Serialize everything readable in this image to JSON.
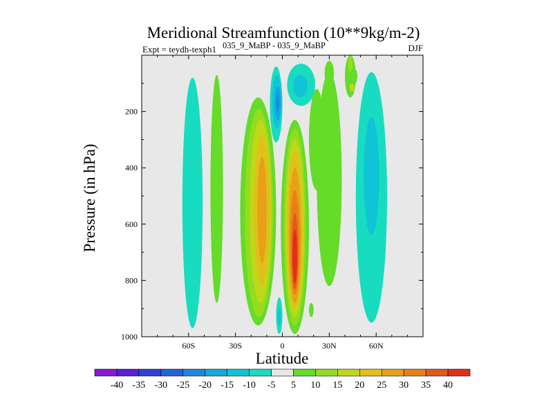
{
  "chart_data": {
    "type": "heatmap",
    "title": "Meridional Streamfunction (10**9kg/m-2)",
    "subtitle_left": "Expt = teydh-texph1",
    "subtitle_exp_a": "035_9_MaBP",
    "subtitle_sep": " - ",
    "subtitle_exp_b": "035_9_MaBP",
    "season": "DJF",
    "xlabel": "Latitude",
    "ylabel": "Pressure (in hPa)",
    "xlim": [
      -90,
      90
    ],
    "ylim": [
      1000,
      0
    ],
    "x_ticks": [
      {
        "value": -60,
        "label": "60S"
      },
      {
        "value": -30,
        "label": "30S"
      },
      {
        "value": 0,
        "label": "0"
      },
      {
        "value": 30,
        "label": "30N"
      },
      {
        "value": 60,
        "label": "60N"
      }
    ],
    "y_ticks": [
      {
        "value": 200,
        "label": "200"
      },
      {
        "value": 400,
        "label": "400"
      },
      {
        "value": 600,
        "label": "600"
      },
      {
        "value": 800,
        "label": "800"
      },
      {
        "value": 1000,
        "label": "1000"
      }
    ],
    "background_color": "#e8e8e8",
    "colorbar": {
      "levels": [
        -40,
        -35,
        -30,
        -25,
        -20,
        -15,
        -10,
        -5,
        5,
        10,
        15,
        20,
        25,
        30,
        35,
        40
      ],
      "labels": [
        "-40",
        "-35",
        "-30",
        "-25",
        "-20",
        "-15",
        "-10",
        "-5",
        "5",
        "10",
        "15",
        "20",
        "25",
        "30",
        "35",
        "40"
      ],
      "colors": [
        "#8a18d8",
        "#5a1fd8",
        "#2f3fd8",
        "#1d66d8",
        "#1a8ae0",
        "#12a8e0",
        "#10c4d8",
        "#18dcc0",
        "#e6e6e6",
        "#64dc28",
        "#94dc20",
        "#c0d818",
        "#e0c01a",
        "#e8a018",
        "#e88018",
        "#e05a18",
        "#e03018"
      ]
    },
    "contour_regions": [
      {
        "name": "sh-subtropical-cell",
        "color_index": 9,
        "lat_min": -27,
        "lat_max": -4,
        "p_top": 150,
        "p_bottom": 960
      },
      {
        "name": "sh-subtropical-cell",
        "color_index": 10,
        "lat_min": -24,
        "lat_max": -6,
        "p_top": 190,
        "p_bottom": 930
      },
      {
        "name": "sh-subtropical-cell",
        "color_index": 11,
        "lat_min": -21,
        "lat_max": -7,
        "p_top": 230,
        "p_bottom": 880
      },
      {
        "name": "sh-subtropical-cell",
        "color_index": 12,
        "lat_min": -18,
        "lat_max": -8,
        "p_top": 280,
        "p_bottom": 820
      },
      {
        "name": "sh-subtropical-cell",
        "color_index": 13,
        "lat_min": -16,
        "lat_max": -10,
        "p_top": 360,
        "p_bottom": 740
      },
      {
        "name": "nh-hadley-cell",
        "color_index": 9,
        "lat_min": -1,
        "lat_max": 17,
        "p_top": 230,
        "p_bottom": 990
      },
      {
        "name": "nh-hadley-cell",
        "color_index": 10,
        "lat_min": 1,
        "lat_max": 15,
        "p_top": 260,
        "p_bottom": 960
      },
      {
        "name": "nh-hadley-cell",
        "color_index": 11,
        "lat_min": 2,
        "lat_max": 14,
        "p_top": 300,
        "p_bottom": 930
      },
      {
        "name": "nh-hadley-cell",
        "color_index": 12,
        "lat_min": 3,
        "lat_max": 13,
        "p_top": 340,
        "p_bottom": 900
      },
      {
        "name": "nh-hadley-cell",
        "color_index": 13,
        "lat_min": 4,
        "lat_max": 12,
        "p_top": 400,
        "p_bottom": 880
      },
      {
        "name": "nh-hadley-cell",
        "color_index": 14,
        "lat_min": 5,
        "lat_max": 11,
        "p_top": 480,
        "p_bottom": 850
      },
      {
        "name": "nh-hadley-cell",
        "color_index": 15,
        "lat_min": 6,
        "lat_max": 10,
        "p_top": 560,
        "p_bottom": 830
      },
      {
        "name": "nh-hadley-cell",
        "color_index": 16,
        "lat_min": 6.5,
        "lat_max": 9.5,
        "p_top": 620,
        "p_bottom": 810
      },
      {
        "name": "sh-southern-band",
        "color_index": 7,
        "lat_min": -64,
        "lat_max": -51,
        "p_top": 80,
        "p_bottom": 970
      },
      {
        "name": "sh-southern-band",
        "color_index": 9,
        "lat_min": -46,
        "lat_max": -38,
        "p_top": 70,
        "p_bottom": 880
      },
      {
        "name": "nh-midlat-band",
        "color_index": 7,
        "lat_min": 47,
        "lat_max": 67,
        "p_top": 60,
        "p_bottom": 950
      },
      {
        "name": "nh-midlat-band",
        "color_index": 6,
        "lat_min": 52,
        "lat_max": 62,
        "p_top": 220,
        "p_bottom": 640
      },
      {
        "name": "nh-outer-band",
        "color_index": 9,
        "lat_min": 22,
        "lat_max": 38,
        "p_top": 60,
        "p_bottom": 820
      },
      {
        "name": "nh-outer-band",
        "color_index": 9,
        "lat_min": 17,
        "lat_max": 27,
        "p_top": 120,
        "p_bottom": 480
      },
      {
        "name": "upper-tropical-negative",
        "color_index": 7,
        "lat_min": -8,
        "lat_max": 0,
        "p_top": 40,
        "p_bottom": 310
      },
      {
        "name": "upper-tropical-negative",
        "color_index": 6,
        "lat_min": -6.5,
        "lat_max": -0.5,
        "p_top": 70,
        "p_bottom": 260
      },
      {
        "name": "upper-tropical-negative",
        "color_index": 5,
        "lat_min": -5,
        "lat_max": -1,
        "p_top": 110,
        "p_bottom": 230
      },
      {
        "name": "upper-tropical-negative",
        "color_index": 4,
        "lat_min": -4,
        "lat_max": -2,
        "p_top": 140,
        "p_bottom": 200
      },
      {
        "name": "upper-nh-negative",
        "color_index": 7,
        "lat_min": 3,
        "lat_max": 21,
        "p_top": 30,
        "p_bottom": 180
      },
      {
        "name": "upper-nh-negative",
        "color_index": 6,
        "lat_min": 7,
        "lat_max": 16,
        "p_top": 70,
        "p_bottom": 150
      },
      {
        "name": "lower-tropical-negative",
        "color_index": 7,
        "lat_min": -4,
        "lat_max": 0,
        "p_top": 860,
        "p_bottom": 990
      },
      {
        "name": "lower-tropical-negative",
        "color_index": 6,
        "lat_min": -3,
        "lat_max": -1,
        "p_top": 900,
        "p_bottom": 960
      },
      {
        "name": "top-nh-positive",
        "color_index": 9,
        "lat_min": 40,
        "lat_max": 47,
        "p_top": 0,
        "p_bottom": 150
      },
      {
        "name": "top-nh-positive",
        "color_index": 10,
        "lat_min": 42,
        "lat_max": 45,
        "p_top": 0,
        "p_bottom": 60
      },
      {
        "name": "upper-nh-positive",
        "color_index": 9,
        "lat_min": 27,
        "lat_max": 33,
        "p_top": 20,
        "p_bottom": 110
      },
      {
        "name": "upper-nh-positive",
        "color_index": 11,
        "lat_min": 43,
        "lat_max": 46,
        "p_top": 100,
        "p_bottom": 130
      },
      {
        "name": "small-nh-positive",
        "color_index": 9,
        "lat_min": 45,
        "lat_max": 48,
        "p_top": 50,
        "p_bottom": 100
      },
      {
        "name": "small-sh-positive",
        "color_index": 9,
        "lat_min": 17,
        "lat_max": 20,
        "p_top": 880,
        "p_bottom": 930
      }
    ]
  }
}
